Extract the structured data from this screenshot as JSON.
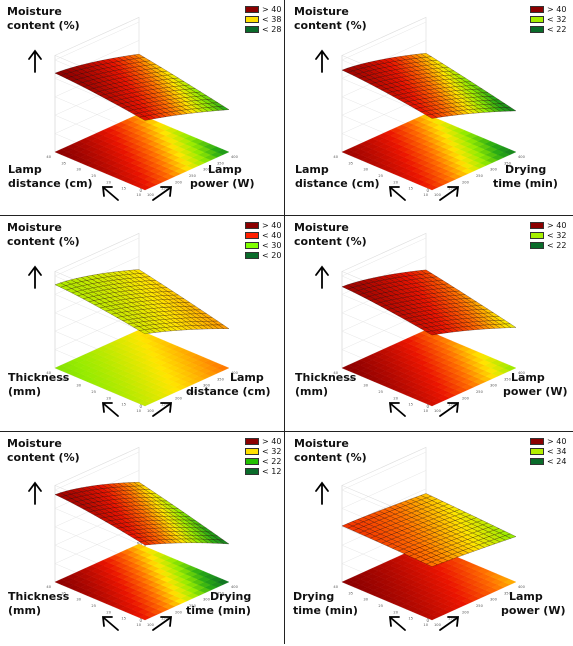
{
  "chart_data": [
    {
      "type": "surface",
      "zlabel": "Moisture content (%)",
      "xlabel": "Lamp power (W)",
      "ylabel": "Lamp distance (cm)",
      "legend": [
        {
          "label": "> 40",
          "color": "#8b0000"
        },
        {
          "label": "< 38",
          "color": "#ffe000"
        },
        {
          "label": "< 28",
          "color": "#0a6b2a"
        }
      ],
      "surface": {
        "z_low": 24,
        "z_high": 58,
        "z_floor_scale": 60,
        "a_low": 0.62,
        "a_high": 1.0,
        "b_low": 0.15,
        "b_high": 0.35
      },
      "floor": {
        "a_low": 0.5,
        "a_high": 1.0,
        "b_low": 0.1,
        "b_high": 0.35
      }
    },
    {
      "type": "surface",
      "zlabel": "Moisture content (%)",
      "xlabel": "Drying time (min)",
      "ylabel": "Lamp distance (cm)",
      "legend": [
        {
          "label": "> 40",
          "color": "#8b0000"
        },
        {
          "label": "< 32",
          "color": "#a6f000"
        },
        {
          "label": "< 22",
          "color": "#0a6b2a"
        }
      ],
      "surface": {
        "z_low": 20,
        "z_high": 58,
        "z_floor_scale": 60,
        "a_low": 0.55,
        "a_high": 0.95,
        "b_low": 0.05,
        "b_high": 0.25
      },
      "floor": {
        "a_low": 0.45,
        "a_high": 0.95,
        "b_low": 0.05,
        "b_high": 0.2
      }
    },
    {
      "type": "surface",
      "zlabel": "Moisture content (%)",
      "xlabel": "Lamp distance (cm)",
      "ylabel": "Thickness (mm)",
      "legend": [
        {
          "label": "> 40",
          "color": "#8b0000"
        },
        {
          "label": "< 40",
          "color": "#ff2000"
        },
        {
          "label": "< 30",
          "color": "#80ff00"
        },
        {
          "label": "< 20",
          "color": "#0a6b2a"
        }
      ],
      "surface": {
        "z_low": 14,
        "z_high": 55,
        "z_floor_scale": 60,
        "a_low": 0.1,
        "a_high": 0.35,
        "b_low": 0.55,
        "b_high": 0.95
      },
      "floor": {
        "a_low": 0.05,
        "a_high": 0.3,
        "b_low": 0.6,
        "b_high": 1.0
      }
    },
    {
      "type": "surface",
      "zlabel": "Moisture content (%)",
      "xlabel": "Lamp power (W)",
      "ylabel": "Thickness (mm)",
      "legend": [
        {
          "label": "> 40",
          "color": "#8b0000"
        },
        {
          "label": "< 32",
          "color": "#a6f000"
        },
        {
          "label": "< 22",
          "color": "#0a6b2a"
        }
      ],
      "surface": {
        "z_low": 18,
        "z_high": 56,
        "z_floor_scale": 60,
        "a_low": 0.55,
        "a_high": 0.95,
        "b_low": 0.4,
        "b_high": 0.85
      },
      "floor": {
        "a_low": 0.45,
        "a_high": 1.0,
        "b_low": 0.3,
        "b_high": 0.9
      }
    },
    {
      "type": "surface",
      "zlabel": "Moisture content (%)",
      "xlabel": "Drying time (min)",
      "ylabel": "Thickness (mm)",
      "legend": [
        {
          "label": "> 40",
          "color": "#8b0000"
        },
        {
          "label": "< 32",
          "color": "#ffe000"
        },
        {
          "label": "< 22",
          "color": "#22c000"
        },
        {
          "label": "< 12",
          "color": "#0a6b2a"
        }
      ],
      "surface": {
        "z_low": 10,
        "z_high": 56,
        "z_floor_scale": 60,
        "a_low": 0.55,
        "a_high": 0.95,
        "b_low": 0.05,
        "b_high": 0.3
      },
      "floor": {
        "a_low": 0.5,
        "a_high": 1.0,
        "b_low": 0.0,
        "b_high": 0.3
      }
    },
    {
      "type": "surface",
      "zlabel": "Moisture content (%)",
      "xlabel": "Lamp power (W)",
      "ylabel": "Drying time (min)",
      "legend": [
        {
          "label": "> 40",
          "color": "#8b0000"
        },
        {
          "label": "< 34",
          "color": "#b4f000"
        },
        {
          "label": "< 24",
          "color": "#0a6b2a"
        }
      ],
      "surface": {
        "z_low": 34,
        "z_high": 44,
        "z_floor_scale": 60,
        "a_low": 0.3,
        "a_high": 0.7,
        "b_low": 0.3,
        "b_high": 0.7
      },
      "floor": {
        "a_low": 0.5,
        "a_high": 1.0,
        "b_low": 0.5,
        "b_high": 1.0
      }
    }
  ],
  "panels": [
    {
      "z_line1": "Moisture",
      "z_line2": "content (%)",
      "left_line1": "Lamp",
      "left_line2": "distance (cm)",
      "right_line1": "Lamp",
      "right_line2": "power (W)"
    },
    {
      "z_line1": "Moisture",
      "z_line2": "content (%)",
      "left_line1": "Lamp",
      "left_line2": "distance (cm)",
      "right_line1": "Drying",
      "right_line2": "time (min)"
    },
    {
      "z_line1": "Moisture",
      "z_line2": "content (%)",
      "left_line1": "Thickness",
      "left_line2": "(mm)",
      "right_line1": "Lamp",
      "right_line2": "distance (cm)"
    },
    {
      "z_line1": "Moisture",
      "z_line2": "content (%)",
      "left_line1": "Thickness",
      "left_line2": "(mm)",
      "right_line1": "Lamp",
      "right_line2": "power (W)"
    },
    {
      "z_line1": "Moisture",
      "z_line2": "content (%)",
      "left_line1": "Thickness",
      "left_line2": "(mm)",
      "right_line1": "Drying",
      "right_line2": "time (min)"
    },
    {
      "z_line1": "Moisture",
      "z_line2": "content (%)",
      "left_line1": "Drying",
      "left_line2": "time (min)",
      "right_line1": "Lamp",
      "right_line2": "power (W)"
    }
  ]
}
